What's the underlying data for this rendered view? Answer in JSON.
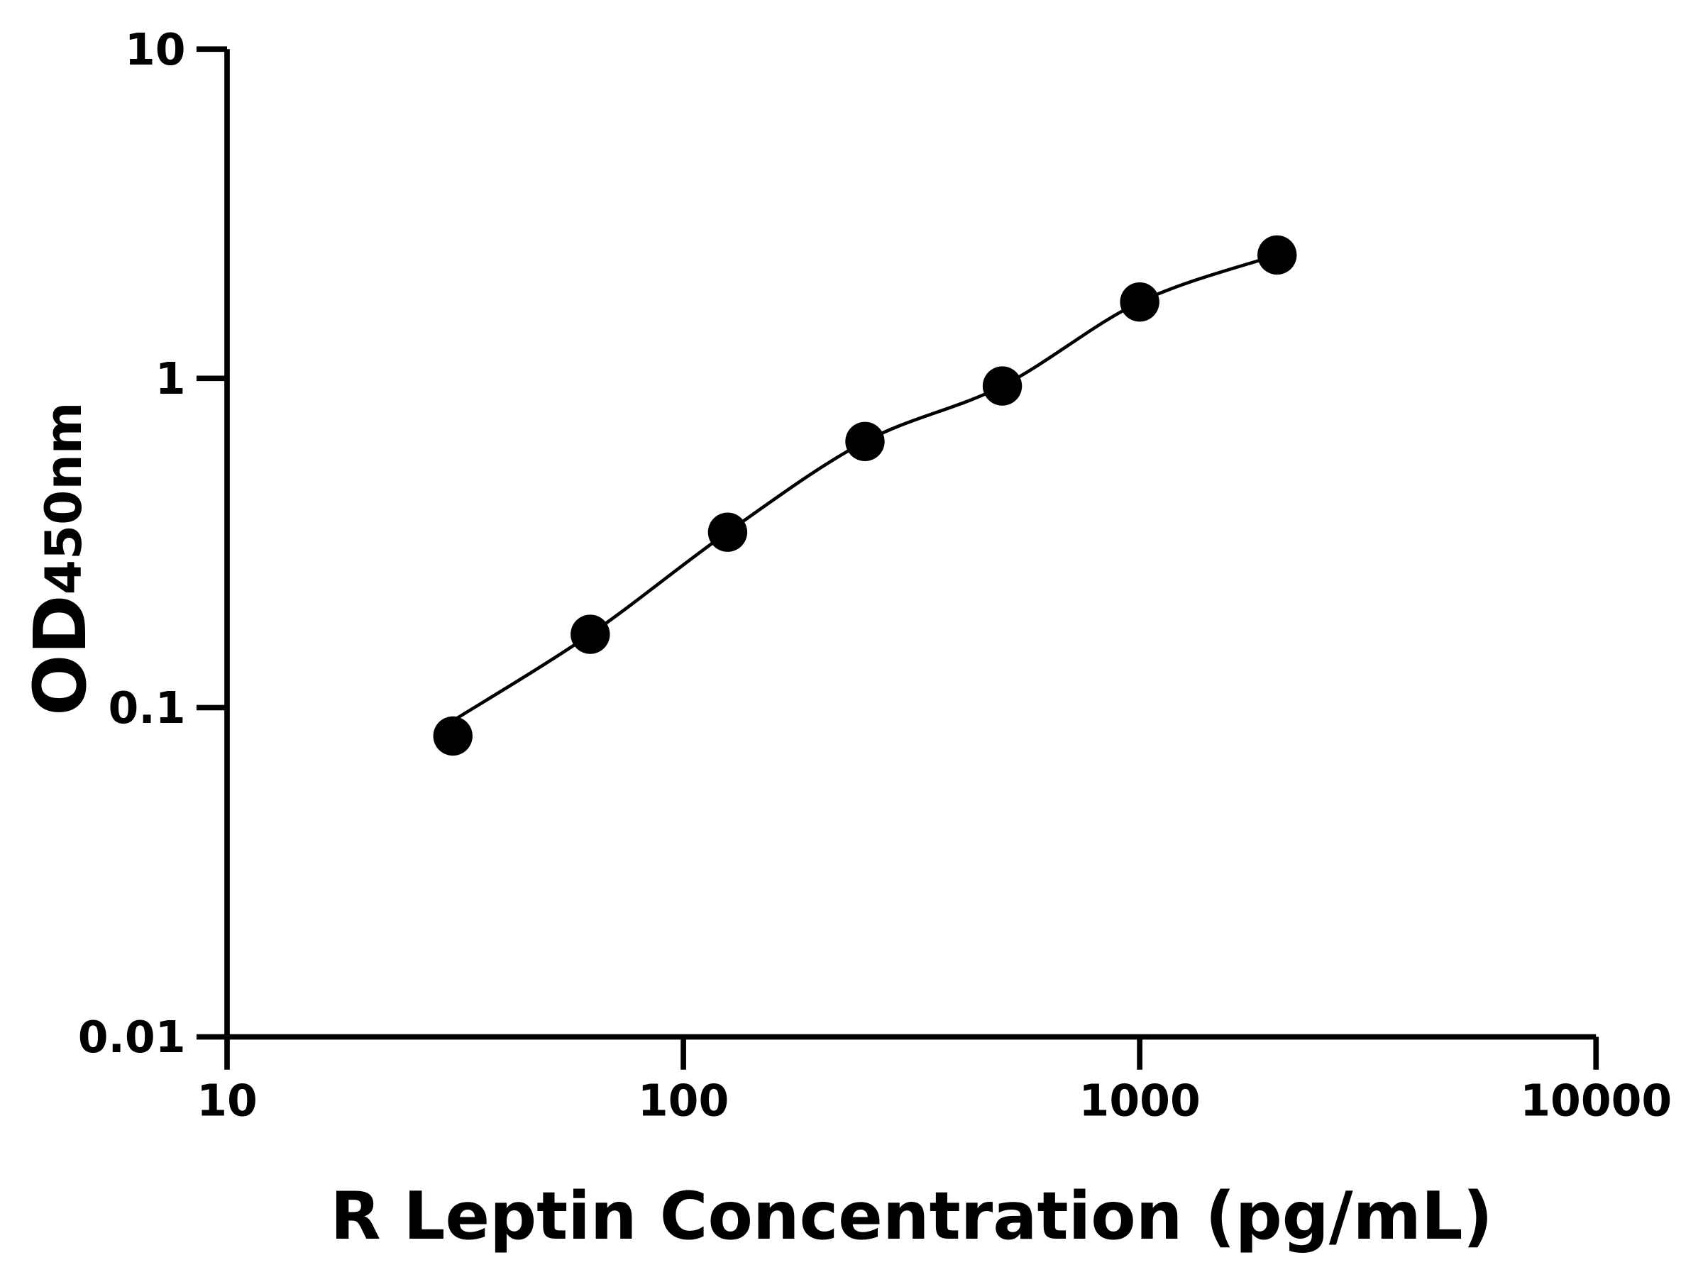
{
  "chart_data": {
    "type": "scatter",
    "xlabel": "R Leptin Concentration (pg/mL)",
    "ylabel": {
      "main": "OD",
      "subscript": "450nm"
    },
    "x_scale": "log",
    "y_scale": "log",
    "xlim": [
      10,
      10000
    ],
    "ylim": [
      0.01,
      10
    ],
    "x_ticks": [
      "10",
      "100",
      "1000",
      "10000"
    ],
    "y_ticks": [
      "0.01",
      "0.1",
      "1",
      "10"
    ],
    "grid": false,
    "fit_line": true,
    "series": [
      {
        "x": [
          31.25,
          62.5,
          125,
          250,
          500,
          1000,
          2000
        ],
        "y": [
          0.082,
          0.167,
          0.341,
          0.643,
          0.948,
          1.706,
          2.37
        ]
      }
    ],
    "colors": {
      "marker": "#000000",
      "line": "#000000",
      "axis": "#000000"
    }
  }
}
